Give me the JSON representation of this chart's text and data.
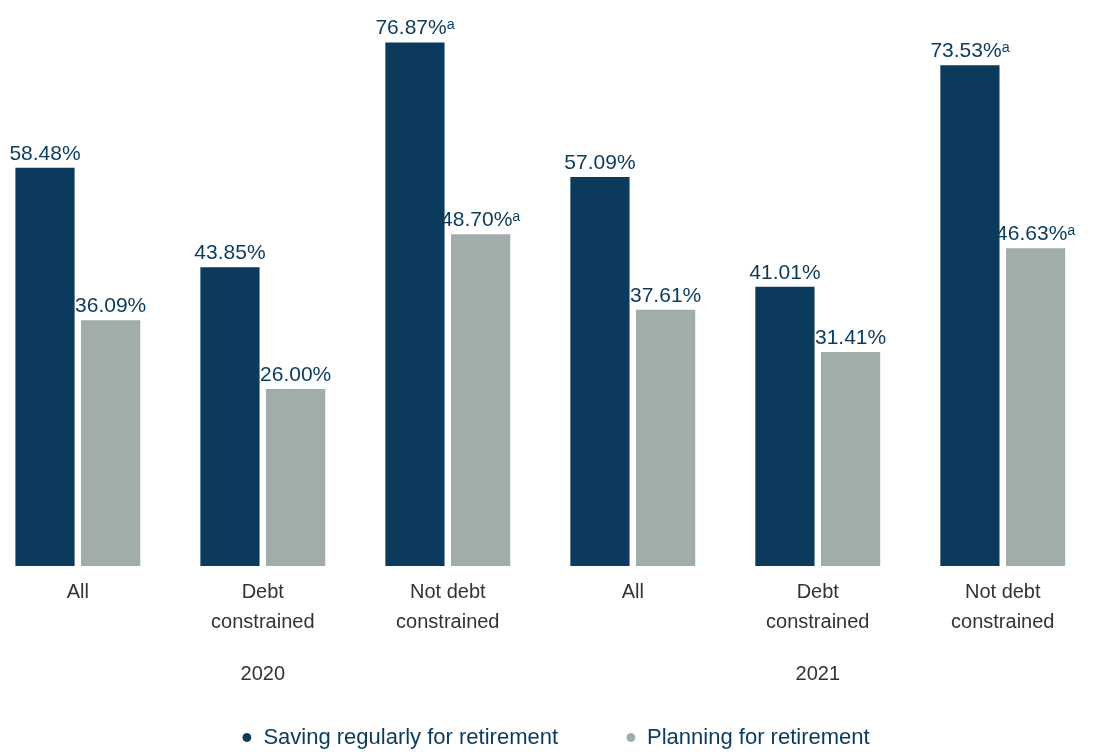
{
  "chart_data": {
    "type": "bar",
    "categories": [
      "All",
      "Debt constrained",
      "Not debt constrained",
      "All",
      "Debt constrained",
      "Not debt constrained"
    ],
    "series": [
      {
        "name": "Saving regularly for retirement",
        "color": "#0b3a5d",
        "values": [
          58.48,
          43.85,
          76.87,
          57.09,
          41.01,
          73.53
        ],
        "value_labels": [
          "58.48%",
          "43.85%",
          "76.87%ᵃ",
          "57.09%",
          "41.01%",
          "73.53%ᵃ"
        ]
      },
      {
        "name": "Planning for retirement",
        "color": "#a1adaa",
        "values": [
          36.09,
          26.0,
          48.7,
          37.61,
          31.41,
          46.63
        ],
        "value_labels": [
          "36.09%",
          "26.00%",
          "48.70%ᵃ",
          "37.61%",
          "31.41%",
          "46.63%ᵃ"
        ]
      }
    ],
    "annotations": [
      "2020",
      "2021"
    ],
    "legend": "bottom",
    "marker": "circle",
    "grid": false
  }
}
